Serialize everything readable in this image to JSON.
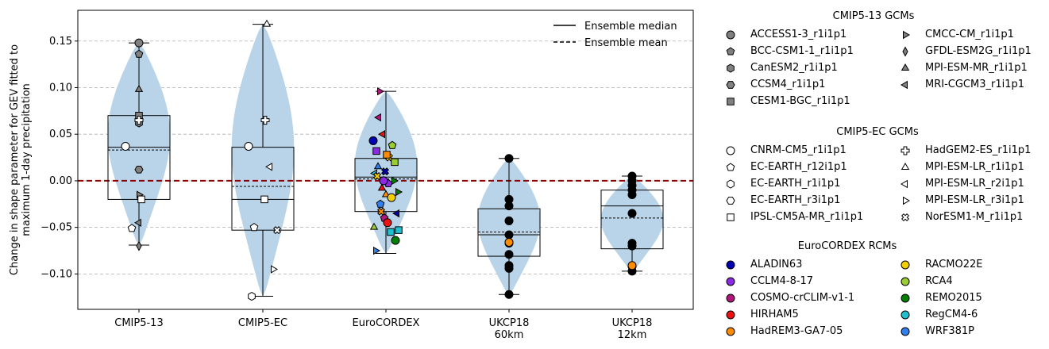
{
  "chart_data": {
    "type": "violin-box",
    "ylabel": "Change in shape parameter for GEV fitted to\nmaximum 1-day precipitation",
    "ylim": [
      -0.138,
      0.183
    ],
    "yticks": [
      -0.1,
      -0.05,
      0.0,
      0.05,
      0.1,
      0.15
    ],
    "ytick_labels": [
      "−0.10",
      "−0.05",
      "0.00",
      "0.05",
      "0.10",
      "0.15"
    ],
    "grid": "horizontal dashed",
    "reference_line": {
      "y": 0.0,
      "color": "#8b0000",
      "style": "dashed"
    },
    "groups": [
      {
        "label": "CMIP5-13",
        "min": -0.069,
        "q1": -0.02,
        "median": 0.036,
        "mean": 0.033,
        "q3": 0.07,
        "max": 0.148
      },
      {
        "label": "CMIP5-EC",
        "min": -0.124,
        "q1": -0.053,
        "median": -0.02,
        "mean": -0.006,
        "q3": 0.036,
        "max": 0.168
      },
      {
        "label": "EuroCORDEX",
        "min": -0.078,
        "q1": -0.033,
        "median": 0.004,
        "mean": 0.002,
        "q3": 0.024,
        "max": 0.096
      },
      {
        "label": "UKCP18\n60km",
        "min": -0.122,
        "q1": -0.081,
        "median": -0.058,
        "mean": -0.055,
        "q3": -0.03,
        "max": 0.024
      },
      {
        "label": "UKCP18\n12km",
        "min": -0.097,
        "q1": -0.073,
        "median": -0.027,
        "mean": -0.04,
        "q3": -0.01,
        "max": 0.005
      }
    ],
    "points": {
      "CMIP5-13": [
        {
          "model": "ACCESS1-3_r1i1p1",
          "y": 0.148
        },
        {
          "model": "BCC-CSM1-1_r1i1p1",
          "y": 0.136
        },
        {
          "model": "CanESM2_r1i1p1",
          "y": 0.062
        },
        {
          "model": "CCSM4_r1i1p1",
          "y": 0.012
        },
        {
          "model": "CESM1-BGC_r1i1p1",
          "y": 0.07
        },
        {
          "model": "CMCC-CM_r1i1p1",
          "y": -0.015
        },
        {
          "model": "GFDL-ESM2G_r1i1p1",
          "y": -0.07
        },
        {
          "model": "MPI-ESM-MR_r1i1p1",
          "y": 0.098
        },
        {
          "model": "MRI-CGCM3_r1i1p1",
          "y": -0.045
        },
        {
          "model": "CNRM-CM5_r1i1p1",
          "y": 0.037
        },
        {
          "model": "EC-EARTH_r12i1p1",
          "y": -0.051
        },
        {
          "model": "HadGEM2-ES_r1i1p1",
          "y": 0.065
        },
        {
          "model": "IPSL-CM5A-MR_r1i1p1",
          "y": -0.02
        }
      ],
      "CMIP5-EC": [
        {
          "model": "CNRM-CM5_r1i1p1",
          "y": 0.037
        },
        {
          "model": "EC-EARTH_r12i1p1",
          "y": -0.05
        },
        {
          "model": "EC-EARTH_r1i1p1",
          "y": -0.124
        },
        {
          "model": "HadGEM2-ES_r1i1p1",
          "y": 0.065
        },
        {
          "model": "IPSL-CM5A-MR_r1i1p1",
          "y": -0.02
        },
        {
          "model": "MPI-ESM-LR_r1i1p1",
          "y": 0.168
        },
        {
          "model": "MPI-ESM-LR_r2i1p1",
          "y": 0.015
        },
        {
          "model": "MPI-ESM-LR_r3i1p1",
          "y": -0.095
        },
        {
          "model": "NorESM1-M_r1i1p1",
          "y": -0.053
        }
      ],
      "EuroCORDEX": [
        {
          "rcm": "ALADIN63",
          "y": 0.043
        },
        {
          "rcm": "CCLM4-8-17",
          "y": 0.032
        },
        {
          "rcm": "COSMO-crCLIM-v1-1",
          "y": 0.096
        },
        {
          "rcm": "HIRHAM5",
          "y": 0.05
        },
        {
          "rcm": "HadREM3-GA7-05",
          "y": -0.015
        },
        {
          "rcm": "RACMO22E",
          "y": 0.025
        },
        {
          "rcm": "RCA4",
          "y": 0.038
        },
        {
          "rcm": "REMO2015",
          "y": -0.064
        },
        {
          "rcm": "RegCM4-6",
          "y": -0.053
        },
        {
          "rcm": "WRF381P",
          "y": -0.075
        },
        {
          "rcm": "COSMO-crCLIM-v1-1",
          "y": 0.068
        },
        {
          "rcm": "HIRHAM5",
          "y": -0.008
        },
        {
          "rcm": "ALADIN63",
          "y": 0.01
        },
        {
          "rcm": "CCLM4-8-17",
          "y": -0.003
        },
        {
          "rcm": "RACMO22E",
          "y": -0.018
        },
        {
          "rcm": "RCA4",
          "y": 0.02
        },
        {
          "rcm": "REMO2015",
          "y": -0.012
        },
        {
          "rcm": "RegCM4-6",
          "y": 0.008
        },
        {
          "rcm": "WRF381P",
          "y": 0.015
        },
        {
          "rcm": "HadREM3-GA7-05",
          "y": -0.033
        },
        {
          "rcm": "COSMO-crCLIM-v1-1",
          "y": -0.04
        },
        {
          "rcm": "HIRHAM5",
          "y": -0.045
        },
        {
          "rcm": "RegCM4-6",
          "y": -0.055
        },
        {
          "rcm": "REMO2015",
          "y": 0.0
        },
        {
          "rcm": "ALADIN63",
          "y": -0.035
        },
        {
          "rcm": "RCA4",
          "y": -0.05
        },
        {
          "rcm": "RACMO22E",
          "y": 0.005
        },
        {
          "rcm": "WRF381P",
          "y": -0.025
        },
        {
          "rcm": "CCLM4-8-17",
          "y": 0.0
        },
        {
          "rcm": "HadREM3-GA7-05",
          "y": 0.028
        }
      ],
      "UKCP18\n60km": [
        0.024,
        -0.02,
        -0.027,
        -0.043,
        -0.058,
        -0.067,
        -0.079,
        -0.091,
        -0.094,
        -0.122
      ],
      "UKCP18\n12km": [
        0.005,
        0.0,
        -0.005,
        -0.01,
        -0.015,
        -0.035,
        -0.067,
        -0.07,
        -0.092,
        -0.097
      ]
    },
    "orange_points": {
      "UKCP18\n60km": -0.066,
      "UKCP18\n12km": -0.091
    }
  },
  "plot_legend": {
    "median": "Ensemble median",
    "mean": "Ensemble mean"
  },
  "legends": {
    "cmip13": {
      "title": "CMIP5-13 GCMs",
      "items": [
        {
          "label": "ACCESS1-3_r1i1p1",
          "marker": "circle"
        },
        {
          "label": "BCC-CSM1-1_r1i1p1",
          "marker": "pentagon"
        },
        {
          "label": "CanESM2_r1i1p1",
          "marker": "hexagon"
        },
        {
          "label": "CCSM4_r1i1p1",
          "marker": "hexagon2"
        },
        {
          "label": "CESM1-BGC_r1i1p1",
          "marker": "square"
        },
        {
          "label": "CMCC-CM_r1i1p1",
          "marker": "triangle-right"
        },
        {
          "label": "GFDL-ESM2G_r1i1p1",
          "marker": "thin-diamond"
        },
        {
          "label": "MPI-ESM-MR_r1i1p1",
          "marker": "triangle-up"
        },
        {
          "label": "MRI-CGCM3_r1i1p1",
          "marker": "triangle-left"
        }
      ],
      "color": "#808080"
    },
    "cmipec": {
      "title": "CMIP5-EC GCMs",
      "items": [
        {
          "label": "CNRM-CM5_r1i1p1",
          "marker": "circle"
        },
        {
          "label": "EC-EARTH_r12i1p1",
          "marker": "pentagon"
        },
        {
          "label": "EC-EARTH_r1i1p1",
          "marker": "hexagon"
        },
        {
          "label": "EC-EARTH_r3i1p1",
          "marker": "hexagon2"
        },
        {
          "label": "IPSL-CM5A-MR_r1i1p1",
          "marker": "square"
        },
        {
          "label": "HadGEM2-ES_r1i1p1",
          "marker": "plus-filled"
        },
        {
          "label": "MPI-ESM-LR_r1i1p1",
          "marker": "triangle-up"
        },
        {
          "label": "MPI-ESM-LR_r2i1p1",
          "marker": "triangle-left"
        },
        {
          "label": "MPI-ESM-LR_r3i1p1",
          "marker": "triangle-right"
        },
        {
          "label": "NorESM1-M_r1i1p1",
          "marker": "x-filled"
        }
      ],
      "color": "#ffffff"
    },
    "rcm": {
      "title": "EuroCORDEX RCMs",
      "items": [
        {
          "label": "ALADIN63",
          "color": "#0000b3"
        },
        {
          "label": "CCLM4-8-17",
          "color": "#8a2be2"
        },
        {
          "label": "COSMO-crCLIM-v1-1",
          "color": "#b0177a"
        },
        {
          "label": "HIRHAM5",
          "color": "#ee1111"
        },
        {
          "label": "HadREM3-GA7-05",
          "color": "#ff8c00"
        },
        {
          "label": "RACMO22E",
          "color": "#f2d000"
        },
        {
          "label": "RCA4",
          "color": "#9acd32"
        },
        {
          "label": "REMO2015",
          "color": "#008000"
        },
        {
          "label": "RegCM4-6",
          "color": "#20c0d0"
        },
        {
          "label": "WRF381P",
          "color": "#3080f0"
        }
      ]
    }
  },
  "colors": {
    "violin": "#b9d4e8",
    "refline": "#8b0000",
    "grid": "#b0b0b0",
    "ukcp_orange": "#ff8c00"
  }
}
